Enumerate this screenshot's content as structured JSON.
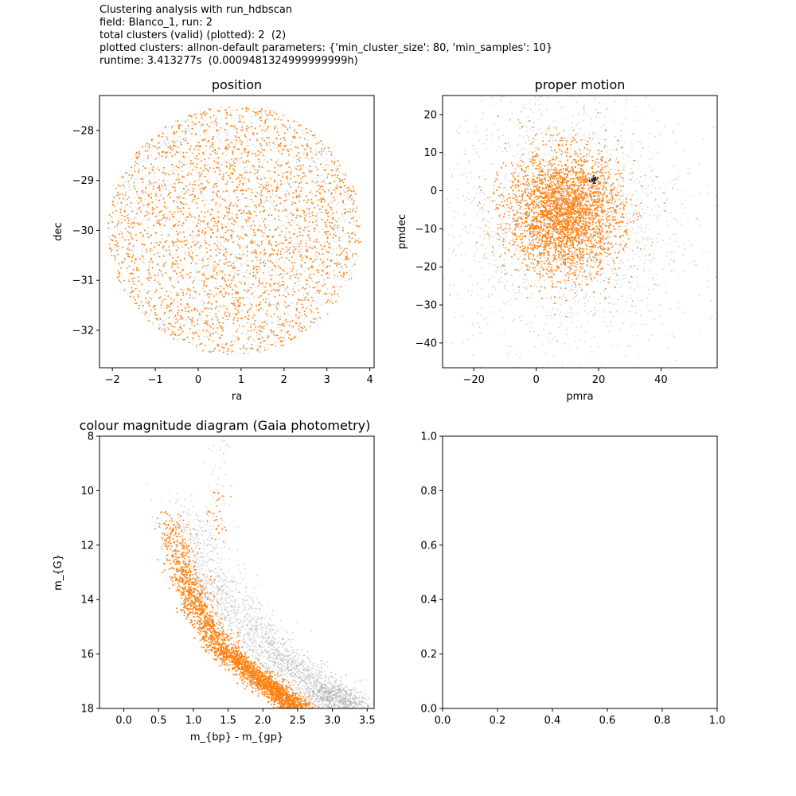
{
  "header": {
    "lines": [
      "Clustering analysis with run_hdbscan",
      "field: Blanco_1, run: 2",
      "total clusters (valid) (plotted): 2  (2)",
      "plotted clusters: allnon-default parameters: {'min_cluster_size': 80, 'min_samples': 10}",
      "runtime: 3.413277s  (0.0009481324999999999h)"
    ]
  },
  "colors": {
    "field": "#9e9e9e",
    "cluster_main": "#ff7f0e",
    "cluster_small": "#1a1a1a",
    "axis": "#000000"
  },
  "chart_data": [
    {
      "type": "scatter",
      "title": "position",
      "xlabel": "ra",
      "ylabel": "dec",
      "xlim": [
        -2.3,
        4.1
      ],
      "ylim": [
        -32.75,
        -27.3
      ],
      "xticks": [
        -2,
        -1,
        0,
        1,
        2,
        3,
        4
      ],
      "yticks": [
        -32,
        -31,
        -30,
        -29,
        -28
      ],
      "xtick_labels": [
        "−2",
        "−1",
        "0",
        "1",
        "2",
        "3",
        "4"
      ],
      "ytick_labels": [
        "−32",
        "−31",
        "−30",
        "−29",
        "−28"
      ],
      "series": [
        {
          "role": "field",
          "distribution": "disc",
          "center": [
            0.85,
            -30.0
          ],
          "radius_x": 2.95,
          "radius_y": 2.5,
          "count": 1400
        },
        {
          "role": "cluster_main",
          "distribution": "disc",
          "center": [
            0.85,
            -30.0
          ],
          "radius_x": 2.95,
          "radius_y": 2.5,
          "count": 2400
        }
      ]
    },
    {
      "type": "scatter",
      "title": "proper motion",
      "xlabel": "pmra",
      "ylabel": "pmdec",
      "xlim": [
        -30,
        58
      ],
      "ylim": [
        -46.5,
        25
      ],
      "xticks": [
        -20,
        0,
        20,
        40
      ],
      "yticks": [
        -40,
        -30,
        -20,
        -10,
        0,
        10,
        20
      ],
      "xtick_labels": [
        "−20",
        "0",
        "20",
        "40"
      ],
      "ytick_labels": [
        "−40",
        "−30",
        "−20",
        "−10",
        "0",
        "10",
        "20"
      ],
      "series": [
        {
          "role": "field",
          "distribution": "gaussian",
          "center": [
            10,
            -8
          ],
          "sigma": [
            20,
            18
          ],
          "count": 2000
        },
        {
          "role": "cluster_main",
          "distribution": "gaussian",
          "center": [
            9,
            -6
          ],
          "sigma": [
            9,
            8
          ],
          "count": 2800
        },
        {
          "role": "cluster_small",
          "distribution": "gaussian",
          "center": [
            18.5,
            2.7
          ],
          "sigma": [
            0.6,
            0.6
          ],
          "count": 25
        }
      ]
    },
    {
      "type": "scatter",
      "title": "colour magnitude diagram (Gaia photometry)",
      "xlabel": "m_{bp} - m_{gp}",
      "ylabel": "m_{G}",
      "xlim": [
        -0.35,
        3.6
      ],
      "ylim": [
        18,
        8
      ],
      "y_inverted": true,
      "xticks": [
        0.0,
        0.5,
        1.0,
        1.5,
        2.0,
        2.5,
        3.0,
        3.5
      ],
      "yticks": [
        8,
        10,
        12,
        14,
        16,
        18
      ],
      "xtick_labels": [
        "0.0",
        "0.5",
        "1.0",
        "1.5",
        "2.0",
        "2.5",
        "3.0",
        "3.5"
      ],
      "ytick_labels": [
        "8",
        "10",
        "12",
        "14",
        "16",
        "18"
      ],
      "series": [
        {
          "role": "field",
          "distribution": "sequence",
          "sequence": [
            [
              0.55,
              10.0
            ],
            [
              0.8,
              12.0
            ],
            [
              1.2,
              14.0
            ],
            [
              1.9,
              16.0
            ],
            [
              2.6,
              17.3
            ],
            [
              3.0,
              18.0
            ]
          ],
          "offset": 0.25,
          "scatter": 0.22,
          "count": 2300
        },
        {
          "role": "cluster_main",
          "distribution": "sequence",
          "sequence": [
            [
              0.6,
              10.5
            ],
            [
              0.8,
              12.5
            ],
            [
              1.0,
              14.0
            ],
            [
              1.4,
              15.8
            ],
            [
              2.0,
              17.0
            ],
            [
              2.5,
              18.0
            ]
          ],
          "offset": 0.0,
          "scatter": 0.12,
          "count": 2500
        },
        {
          "role": "field",
          "distribution": "gaussian",
          "center": [
            1.35,
            9.3
          ],
          "sigma": [
            0.12,
            1.0
          ],
          "count": 40
        },
        {
          "role": "cluster_main",
          "distribution": "gaussian",
          "center": [
            1.35,
            10.7
          ],
          "sigma": [
            0.08,
            0.6
          ],
          "count": 30
        }
      ]
    },
    {
      "type": "scatter",
      "title": "",
      "xlabel": "",
      "ylabel": "",
      "xlim": [
        0,
        1
      ],
      "ylim": [
        0,
        1
      ],
      "xticks": [
        0.0,
        0.2,
        0.4,
        0.6,
        0.8,
        1.0
      ],
      "yticks": [
        0.0,
        0.2,
        0.4,
        0.6,
        0.8,
        1.0
      ],
      "xtick_labels": [
        "0.0",
        "0.2",
        "0.4",
        "0.6",
        "0.8",
        "1.0"
      ],
      "ytick_labels": [
        "0.0",
        "0.2",
        "0.4",
        "0.6",
        "0.8",
        "1.0"
      ],
      "series": []
    }
  ]
}
